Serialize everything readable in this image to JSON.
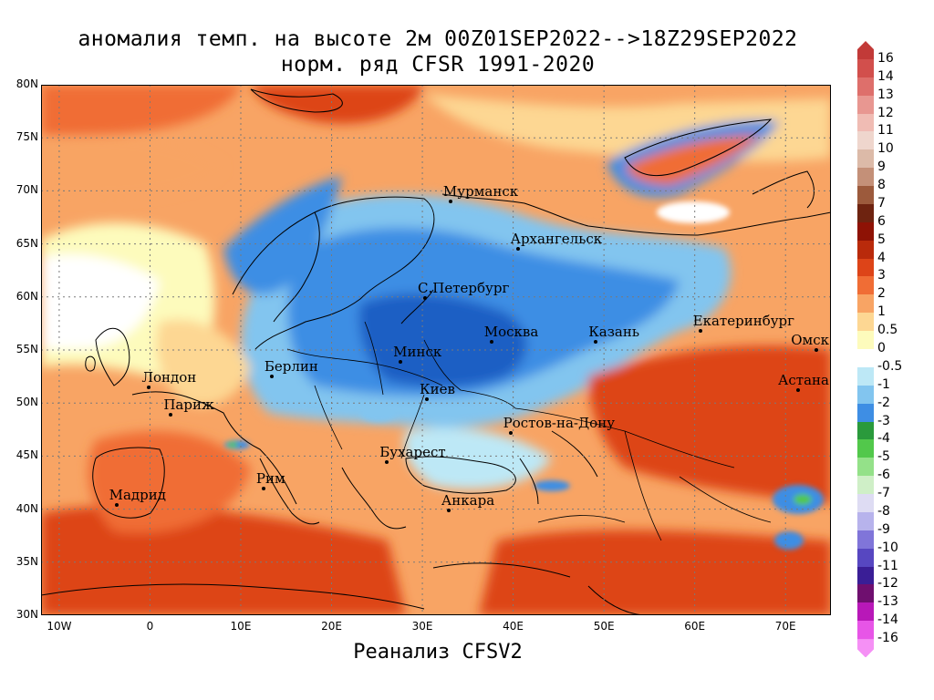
{
  "title_line1": "аномалия темп. на высоте 2м 00Z01SEP2022-->18Z29SEP2022",
  "title_line2": "норм. ряд CFSR 1991-2020",
  "footer": "Реанализ CFSV2",
  "map": {
    "lon_range": [
      -12,
      75
    ],
    "lat_range": [
      30,
      80
    ],
    "lat_ticks": [
      "80N",
      "75N",
      "70N",
      "65N",
      "60N",
      "55N",
      "50N",
      "45N",
      "40N",
      "35N",
      "30N"
    ],
    "lat_values": [
      80,
      75,
      70,
      65,
      60,
      55,
      50,
      45,
      40,
      35,
      30
    ],
    "lon_ticks": [
      "10W",
      "0",
      "10E",
      "20E",
      "30E",
      "40E",
      "50E",
      "60E",
      "70E"
    ],
    "lon_values": [
      -10,
      0,
      10,
      20,
      30,
      40,
      50,
      60,
      70
    ],
    "grid": true,
    "anomaly_pattern": {
      "cold_center": "Eastern Europe / Western Russia (Moscow–Minsk–Kiev)",
      "warm_regions": [
        "Barents Sea / Arctic",
        "Kazakhstan / Ural",
        "Mediterranean / North Africa",
        "Iberia"
      ]
    }
  },
  "cities": [
    {
      "name": "Мурманск",
      "lon": 33.1,
      "lat": 69.0
    },
    {
      "name": "Архангельск",
      "lon": 40.5,
      "lat": 64.5
    },
    {
      "name": "С.Петербург",
      "lon": 30.3,
      "lat": 59.9
    },
    {
      "name": "Москва",
      "lon": 37.6,
      "lat": 55.8
    },
    {
      "name": "Казань",
      "lon": 49.1,
      "lat": 55.8
    },
    {
      "name": "Екатеринбург",
      "lon": 60.6,
      "lat": 56.8
    },
    {
      "name": "Минск",
      "lon": 27.6,
      "lat": 53.9
    },
    {
      "name": "Берлин",
      "lon": 13.4,
      "lat": 52.5
    },
    {
      "name": "Лондон",
      "lon": -0.1,
      "lat": 51.5
    },
    {
      "name": "Париж",
      "lon": 2.3,
      "lat": 48.9
    },
    {
      "name": "Киев",
      "lon": 30.5,
      "lat": 50.4
    },
    {
      "name": "Омск",
      "lon": 73.4,
      "lat": 55.0
    },
    {
      "name": "Астана",
      "lon": 71.4,
      "lat": 51.2
    },
    {
      "name": "Ростов-на-Дону",
      "lon": 39.7,
      "lat": 47.2
    },
    {
      "name": "Бухарест",
      "lon": 26.1,
      "lat": 44.4
    },
    {
      "name": "Рим",
      "lon": 12.5,
      "lat": 41.9
    },
    {
      "name": "Мадрид",
      "lon": -3.7,
      "lat": 40.4
    },
    {
      "name": "Анкара",
      "lon": 32.9,
      "lat": 39.9
    }
  ],
  "legend": {
    "entries": [
      {
        "label": "16",
        "color": "#c23a38"
      },
      {
        "label": "14",
        "color": "#d24f4c"
      },
      {
        "label": "13",
        "color": "#de6f6b"
      },
      {
        "label": "12",
        "color": "#e89791"
      },
      {
        "label": "11",
        "color": "#f0bcb4"
      },
      {
        "label": "10",
        "color": "#efd6cd"
      },
      {
        "label": "9",
        "color": "#dcbaa8"
      },
      {
        "label": "8",
        "color": "#c49078"
      },
      {
        "label": "7",
        "color": "#9c5a3c"
      },
      {
        "label": "6",
        "color": "#6e2310"
      },
      {
        "label": "5",
        "color": "#8e1205"
      },
      {
        "label": "4",
        "color": "#b92a0b"
      },
      {
        "label": "3",
        "color": "#dd4418"
      },
      {
        "label": "2",
        "color": "#f06d35"
      },
      {
        "label": "1",
        "color": "#f8a464"
      },
      {
        "label": "0.5",
        "color": "#fdd793"
      },
      {
        "label": "0",
        "color": "#fdfbbc"
      },
      {
        "label": "-0.5",
        "color": "#ffffff"
      },
      {
        "label": "-1",
        "color": "#bde8f6"
      },
      {
        "label": "-2",
        "color": "#82c5ef"
      },
      {
        "label": "-3",
        "color": "#3e8ee4"
      },
      {
        "label": "-4",
        "color": "#2a9a3c"
      },
      {
        "label": "-5",
        "color": "#52c84b"
      },
      {
        "label": "-6",
        "color": "#94e189"
      },
      {
        "label": "-7",
        "color": "#cfefc7"
      },
      {
        "label": "-8",
        "color": "#dedcf3"
      },
      {
        "label": "-9",
        "color": "#b7b3ec"
      },
      {
        "label": "-10",
        "color": "#8075d9"
      },
      {
        "label": "-11",
        "color": "#5747c1"
      },
      {
        "label": "-12",
        "color": "#3a1e96"
      },
      {
        "label": "-13",
        "color": "#6f0f6f"
      },
      {
        "label": "-14",
        "color": "#b818b8"
      },
      {
        "label": "-16",
        "color": "#e755e7"
      },
      {
        "label": "",
        "color": "#f590f5"
      }
    ]
  }
}
